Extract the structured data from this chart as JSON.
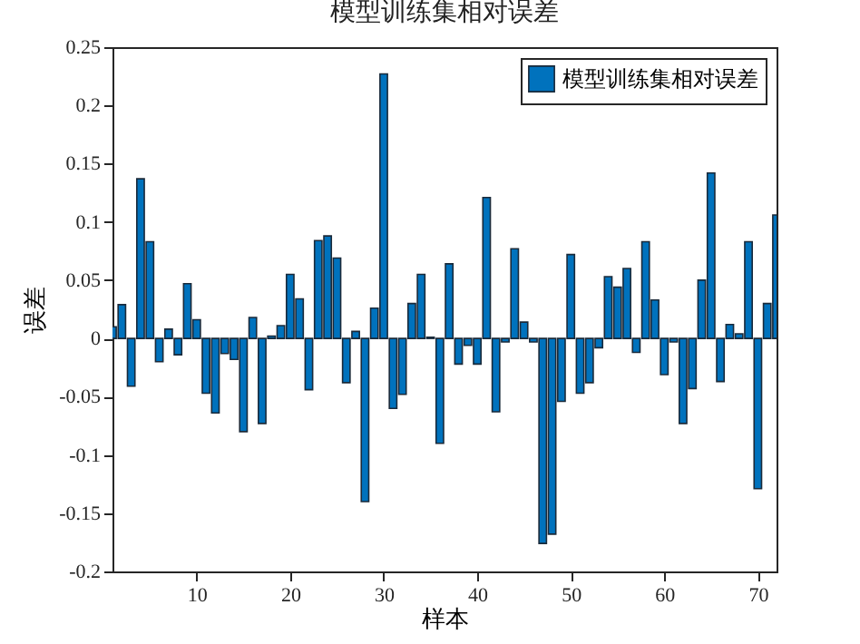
{
  "chart_data": {
    "type": "bar",
    "title": "模型训练集相对误差",
    "xlabel": "样本",
    "ylabel": "误差",
    "x": [
      1,
      2,
      3,
      4,
      5,
      6,
      7,
      8,
      9,
      10,
      11,
      12,
      13,
      14,
      15,
      16,
      17,
      18,
      19,
      20,
      21,
      22,
      23,
      24,
      25,
      26,
      27,
      28,
      29,
      30,
      31,
      32,
      33,
      34,
      35,
      36,
      37,
      38,
      39,
      40,
      41,
      42,
      43,
      44,
      45,
      46,
      47,
      48,
      49,
      50,
      51,
      52,
      53,
      54,
      55,
      56,
      57,
      58,
      59,
      60,
      61,
      62,
      63,
      64,
      65,
      66,
      67,
      68,
      69,
      70,
      71,
      72
    ],
    "series": [
      {
        "name": "模型训练集相对误差",
        "color": "#0072bd",
        "values": [
          0.01,
          0.029,
          -0.041,
          0.137,
          0.083,
          -0.02,
          0.008,
          -0.014,
          0.047,
          0.016,
          -0.047,
          -0.064,
          -0.013,
          -0.018,
          -0.08,
          0.018,
          -0.073,
          0.002,
          0.011,
          0.055,
          0.034,
          -0.044,
          0.084,
          0.088,
          0.069,
          -0.038,
          0.006,
          -0.14,
          0.026,
          0.227,
          -0.06,
          -0.048,
          0.03,
          0.055,
          0.001,
          -0.09,
          0.064,
          -0.022,
          -0.006,
          -0.022,
          0.121,
          -0.063,
          -0.003,
          0.077,
          0.014,
          -0.003,
          -0.176,
          -0.168,
          -0.054,
          0.072,
          -0.047,
          -0.038,
          -0.008,
          0.053,
          0.044,
          0.06,
          -0.012,
          0.083,
          0.033,
          -0.031,
          -0.003,
          -0.073,
          -0.043,
          0.05,
          0.142,
          -0.037,
          0.012,
          0.004,
          0.083,
          -0.129,
          0.03,
          0.106
        ]
      }
    ],
    "xlim": [
      1,
      72
    ],
    "xticks": [
      10,
      20,
      30,
      40,
      50,
      60,
      70
    ],
    "ylim": [
      -0.2,
      0.25
    ],
    "yticks": [
      -0.2,
      -0.15,
      -0.1,
      -0.05,
      0,
      0.05,
      0.1,
      0.15,
      0.2,
      0.25
    ],
    "grid": false,
    "legend": "top right"
  }
}
